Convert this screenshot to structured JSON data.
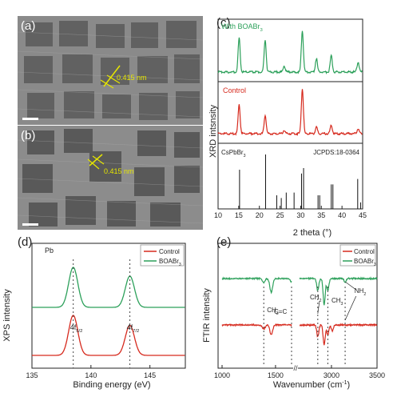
{
  "panels": {
    "a": {
      "label": "(a)",
      "annotation": "0.415 nm"
    },
    "b": {
      "label": "(b)",
      "annotation": "0.415 nm"
    },
    "c": {
      "label": "(c)"
    },
    "d": {
      "label": "(d)"
    },
    "e": {
      "label": "(e)"
    }
  },
  "colors": {
    "red": "#d62a1e",
    "green": "#2ca05a",
    "black": "#111111"
  },
  "chart_data": [
    {
      "id": "c",
      "type": "line",
      "xlabel": "2 theta (°)",
      "ylabel": "XRD intsnsity",
      "xlim": [
        10,
        45
      ],
      "xticks": [
        10,
        15,
        20,
        25,
        30,
        35,
        40,
        45
      ],
      "series": [
        {
          "name": "With BOABr3",
          "label_main": "With BOABr",
          "label_sub": "3",
          "color": "#2ca05a",
          "peaks": [
            [
              15.1,
              1.0
            ],
            [
              21.4,
              0.95
            ],
            [
              26.0,
              0.18
            ],
            [
              30.4,
              1.25
            ],
            [
              33.8,
              0.4
            ],
            [
              37.4,
              0.5
            ],
            [
              43.9,
              0.3
            ]
          ]
        },
        {
          "name": "Control",
          "color": "#d62a1e",
          "peaks": [
            [
              15.1,
              0.85
            ],
            [
              21.4,
              0.55
            ],
            [
              26.0,
              0.1
            ],
            [
              30.4,
              1.35
            ],
            [
              33.8,
              0.2
            ],
            [
              37.4,
              0.25
            ],
            [
              43.9,
              0.15
            ]
          ]
        }
      ],
      "reference": {
        "name_main": "CsPbBr",
        "name_sub": "3",
        "card": "JCPDS:18-0364",
        "lines": [
          [
            15.2,
            0.72
          ],
          [
            21.5,
            1.0
          ],
          [
            24.2,
            0.25
          ],
          [
            25.3,
            0.2
          ],
          [
            26.5,
            0.3
          ],
          [
            28.4,
            0.3
          ],
          [
            30.2,
            0.65
          ],
          [
            30.7,
            0.75
          ],
          [
            34.2,
            0.25
          ],
          [
            34.6,
            0.25
          ],
          [
            37.4,
            0.45
          ],
          [
            37.8,
            0.45
          ],
          [
            43.8,
            0.55
          ],
          [
            44.5,
            0.12
          ]
        ]
      }
    },
    {
      "id": "d",
      "type": "line",
      "xlabel": "Binding energy (eV)",
      "ylabel": "XPS intensity",
      "element": "Pb",
      "xlim": [
        135,
        148
      ],
      "xticks": [
        135,
        140,
        145
      ],
      "legend": [
        {
          "name": "Control",
          "color": "#d62a1e"
        },
        {
          "name": "BOABr",
          "sub": "3",
          "color": "#2ca05a"
        }
      ],
      "series": [
        {
          "name": "Control",
          "color": "#d62a1e",
          "peaks": [
            [
              138.5,
              1.0
            ],
            [
              143.3,
              0.75
            ]
          ]
        },
        {
          "name": "BOABr3",
          "color": "#2ca05a",
          "peaks": [
            [
              138.5,
              1.0
            ],
            [
              143.3,
              0.78
            ]
          ]
        }
      ],
      "peak_labels": [
        {
          "main": "4f",
          "sub": "5/2",
          "x": 138.5
        },
        {
          "main": "4f",
          "sub": "7/2",
          "x": 143.3
        }
      ]
    },
    {
      "id": "e",
      "type": "line",
      "xlabel": "Wavenumber (cm",
      "xlabel_sup": "-1",
      "xlabel_end": ")",
      "ylabel": "FTIR intensity",
      "xticks": [
        1000,
        1500,
        3000,
        3500
      ],
      "legend": [
        {
          "name": "Control",
          "color": "#d62a1e"
        },
        {
          "name": "BOABr",
          "sub": "3",
          "color": "#2ca05a"
        }
      ],
      "series": [
        {
          "name": "Control",
          "color": "#d62a1e",
          "dips_low": [
            [
              1390,
              0.1
            ],
            [
              1460,
              0.25
            ]
          ],
          "dips_high": [
            [
              2850,
              0.3
            ],
            [
              2920,
              0.5
            ],
            [
              2960,
              0.25
            ],
            [
              3010,
              0.15
            ]
          ]
        },
        {
          "name": "BOABr3",
          "color": "#2ca05a",
          "dips_low": [
            [
              1390,
              0.1
            ],
            [
              1460,
              0.35
            ],
            [
              1650,
              0.08
            ]
          ],
          "dips_high": [
            [
              2850,
              0.3
            ],
            [
              2920,
              0.65
            ],
            [
              2960,
              0.3
            ],
            [
              3150,
              0.1
            ]
          ]
        }
      ],
      "annotations": [
        {
          "main": "CH",
          "sub": "3"
        },
        {
          "main": "C=C"
        },
        {
          "main": "CH",
          "sub": "2"
        },
        {
          "main": "CH",
          "sub": "3"
        },
        {
          "main": "NH",
          "sub": "2"
        }
      ]
    }
  ]
}
